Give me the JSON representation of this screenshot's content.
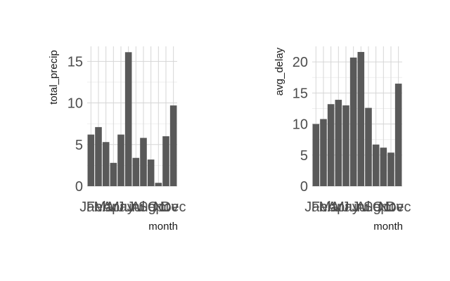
{
  "chart_data": [
    {
      "type": "bar",
      "xlabel": "month",
      "ylabel": "total_precip",
      "categories": [
        "Jan",
        "Feb",
        "Mar",
        "Apr",
        "May",
        "Jun",
        "Jul",
        "Aug",
        "Sep",
        "Oct",
        "Nov",
        "Dec"
      ],
      "values": [
        6.2,
        7.1,
        5.3,
        2.8,
        6.2,
        16.1,
        3.4,
        5.8,
        3.2,
        0.4,
        6.0,
        9.7
      ],
      "yticks": [
        0,
        5,
        10,
        15
      ],
      "ylim": [
        0,
        16.8
      ],
      "grid": true,
      "bar_color": "#595959"
    },
    {
      "type": "bar",
      "xlabel": "month",
      "ylabel": "avg_delay",
      "categories": [
        "Jan",
        "Feb",
        "Mar",
        "Apr",
        "May",
        "Jun",
        "Jul",
        "Aug",
        "Sep",
        "Oct",
        "Nov",
        "Dec"
      ],
      "values": [
        10.0,
        10.8,
        13.2,
        13.9,
        13.0,
        20.7,
        21.6,
        12.6,
        6.7,
        6.2,
        5.4,
        16.5
      ],
      "yticks": [
        0,
        5,
        10,
        15,
        20
      ],
      "ylim": [
        0,
        22.5
      ],
      "grid": true,
      "bar_color": "#595959"
    }
  ]
}
